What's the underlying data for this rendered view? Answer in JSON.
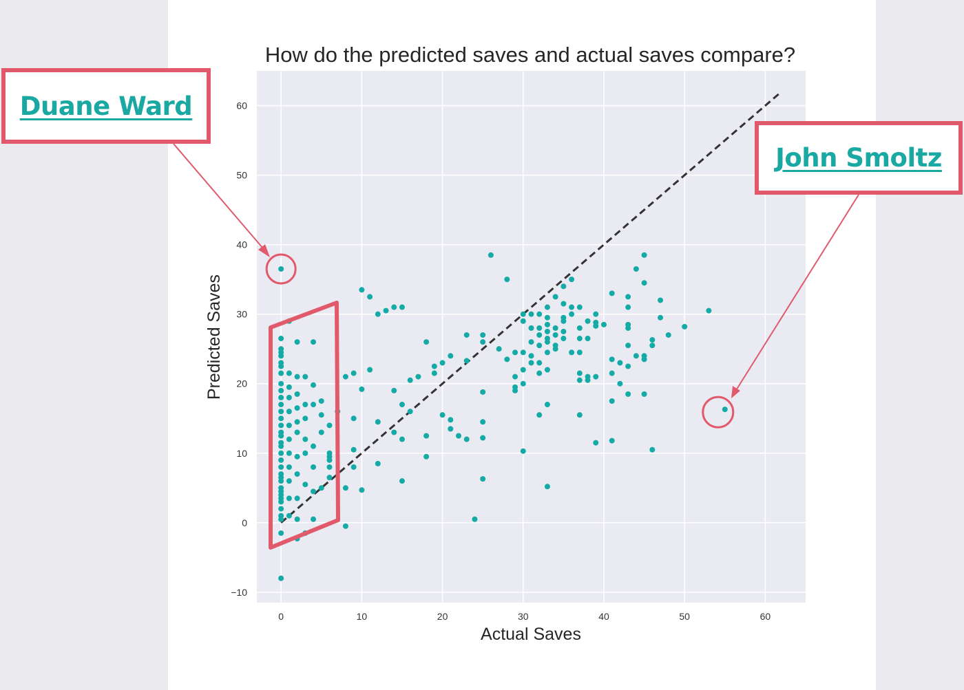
{
  "callouts": {
    "left": {
      "label": "Duane Ward"
    },
    "right": {
      "label": "John Smoltz"
    }
  },
  "colors": {
    "points": "#14aaa6",
    "annotation": "#e05a6b",
    "reference_line": "#333333",
    "plot_bg": "#eaeaf2"
  },
  "chart_data": {
    "type": "scatter",
    "title": "How do the predicted saves and actual saves compare?",
    "xlabel": "Actual Saves",
    "ylabel": "Predicted Saves",
    "xlim": [
      -3,
      65
    ],
    "ylim": [
      -11.5,
      65
    ],
    "xticks": [
      0,
      10,
      20,
      30,
      40,
      50,
      60
    ],
    "yticks": [
      -10,
      0,
      10,
      20,
      30,
      40,
      50,
      60
    ],
    "grid": true,
    "reference_line": {
      "style": "dashed",
      "points": [
        [
          0,
          0
        ],
        [
          62,
          62
        ]
      ]
    },
    "highlighted_points": [
      {
        "label": "Duane Ward",
        "x": 0,
        "y": 36.5
      },
      {
        "label": "John Smoltz",
        "x": 55,
        "y": 16.3
      }
    ],
    "points": [
      [
        0,
        36.5
      ],
      [
        0,
        26.5
      ],
      [
        0,
        25
      ],
      [
        0,
        24.5
      ],
      [
        0,
        24
      ],
      [
        0,
        23
      ],
      [
        0,
        22.5
      ],
      [
        0,
        21.5
      ],
      [
        0,
        20
      ],
      [
        0,
        19
      ],
      [
        0,
        18
      ],
      [
        0,
        17
      ],
      [
        0,
        16
      ],
      [
        0,
        15
      ],
      [
        0,
        14
      ],
      [
        0,
        13
      ],
      [
        0,
        12.5
      ],
      [
        0,
        11.5
      ],
      [
        0,
        11
      ],
      [
        0,
        10
      ],
      [
        0,
        9
      ],
      [
        0,
        8
      ],
      [
        0,
        7
      ],
      [
        0,
        6.5
      ],
      [
        0,
        6
      ],
      [
        0,
        5
      ],
      [
        0,
        4.5
      ],
      [
        0,
        4
      ],
      [
        0,
        3.5
      ],
      [
        0,
        3
      ],
      [
        0,
        2
      ],
      [
        0,
        1
      ],
      [
        0,
        0.5
      ],
      [
        0,
        -1.5
      ],
      [
        0,
        -8
      ],
      [
        1,
        29
      ],
      [
        1,
        21.5
      ],
      [
        1,
        19.5
      ],
      [
        1,
        18
      ],
      [
        1,
        16
      ],
      [
        1,
        14
      ],
      [
        1,
        12
      ],
      [
        1,
        10
      ],
      [
        1,
        8
      ],
      [
        1,
        6
      ],
      [
        1,
        3.5
      ],
      [
        1,
        1
      ],
      [
        2,
        26
      ],
      [
        2,
        21
      ],
      [
        2,
        18.5
      ],
      [
        2,
        16.5
      ],
      [
        2,
        14.5
      ],
      [
        2,
        13
      ],
      [
        2,
        9.5
      ],
      [
        2,
        7
      ],
      [
        2,
        3.5
      ],
      [
        2,
        0.5
      ],
      [
        2,
        -2.3
      ],
      [
        3,
        21
      ],
      [
        3,
        17
      ],
      [
        3,
        15
      ],
      [
        3,
        12
      ],
      [
        3,
        10
      ],
      [
        3,
        5.5
      ],
      [
        3,
        -1.5
      ],
      [
        4,
        26
      ],
      [
        4,
        19.8
      ],
      [
        4,
        17
      ],
      [
        4,
        11
      ],
      [
        4,
        8
      ],
      [
        4,
        4.5
      ],
      [
        4,
        0.5
      ],
      [
        5,
        17.5
      ],
      [
        5,
        15.5
      ],
      [
        5,
        13
      ],
      [
        5,
        5
      ],
      [
        6,
        14
      ],
      [
        6,
        10
      ],
      [
        6,
        9.5
      ],
      [
        6,
        9
      ],
      [
        6,
        8
      ],
      [
        6,
        6.5
      ],
      [
        7,
        16
      ],
      [
        8,
        21
      ],
      [
        8,
        5
      ],
      [
        8,
        -0.5
      ],
      [
        9,
        21.5
      ],
      [
        9,
        15
      ],
      [
        9,
        10.5
      ],
      [
        9,
        8
      ],
      [
        10,
        33.5
      ],
      [
        10,
        19.2
      ],
      [
        10,
        4.7
      ],
      [
        11,
        32.5
      ],
      [
        11,
        22
      ],
      [
        12,
        30
      ],
      [
        12,
        14.5
      ],
      [
        12,
        8.5
      ],
      [
        13,
        30.5
      ],
      [
        14,
        31
      ],
      [
        14,
        19
      ],
      [
        14,
        13
      ],
      [
        15,
        31
      ],
      [
        15,
        17
      ],
      [
        15,
        12
      ],
      [
        15,
        6
      ],
      [
        16,
        20.5
      ],
      [
        16,
        16
      ],
      [
        17,
        21
      ],
      [
        18,
        26
      ],
      [
        18,
        12.5
      ],
      [
        18,
        9.5
      ],
      [
        19,
        22.5
      ],
      [
        19,
        21.5
      ],
      [
        20,
        23
      ],
      [
        20,
        15.5
      ],
      [
        21,
        24
      ],
      [
        21,
        14.8
      ],
      [
        21,
        13.5
      ],
      [
        22,
        12.5
      ],
      [
        23,
        23.3
      ],
      [
        23,
        27
      ],
      [
        23,
        12
      ],
      [
        24,
        0.5
      ],
      [
        25,
        27
      ],
      [
        25,
        26
      ],
      [
        25,
        18.8
      ],
      [
        25,
        14.5
      ],
      [
        25,
        12.2
      ],
      [
        25,
        6.3
      ],
      [
        26,
        38.5
      ],
      [
        27,
        25
      ],
      [
        28,
        35
      ],
      [
        28,
        23.5
      ],
      [
        29,
        24.5
      ],
      [
        29,
        21
      ],
      [
        29,
        19.5
      ],
      [
        29,
        19
      ],
      [
        30,
        30
      ],
      [
        30,
        29
      ],
      [
        30,
        24.5
      ],
      [
        30,
        22
      ],
      [
        30,
        20
      ],
      [
        30,
        10.3
      ],
      [
        31,
        30
      ],
      [
        31,
        28
      ],
      [
        31,
        26
      ],
      [
        31,
        24
      ],
      [
        31,
        23
      ],
      [
        32,
        30
      ],
      [
        32,
        28
      ],
      [
        32,
        27
      ],
      [
        32,
        25.5
      ],
      [
        32,
        23
      ],
      [
        32,
        21.5
      ],
      [
        32,
        15.5
      ],
      [
        33,
        31
      ],
      [
        33,
        29.5
      ],
      [
        33,
        28.5
      ],
      [
        33,
        27.5
      ],
      [
        33,
        26.5
      ],
      [
        33,
        26
      ],
      [
        33,
        24.5
      ],
      [
        33,
        22
      ],
      [
        33,
        17
      ],
      [
        33,
        5.2
      ],
      [
        34,
        32.5
      ],
      [
        34,
        28
      ],
      [
        34,
        27
      ],
      [
        34,
        25.5
      ],
      [
        34,
        25
      ],
      [
        35,
        34
      ],
      [
        35,
        31.5
      ],
      [
        35,
        29.5
      ],
      [
        35,
        29
      ],
      [
        35,
        27.5
      ],
      [
        35,
        26.5
      ],
      [
        36,
        35
      ],
      [
        36,
        31
      ],
      [
        36,
        30
      ],
      [
        36,
        24.5
      ],
      [
        37,
        31
      ],
      [
        37,
        28
      ],
      [
        37,
        26.5
      ],
      [
        37,
        24.5
      ],
      [
        37,
        21.5
      ],
      [
        37,
        20.5
      ],
      [
        37,
        15.5
      ],
      [
        38,
        29
      ],
      [
        38,
        26.5
      ],
      [
        38,
        21
      ],
      [
        38,
        20.5
      ],
      [
        39,
        30
      ],
      [
        39,
        28.8
      ],
      [
        39,
        28.3
      ],
      [
        39,
        21
      ],
      [
        39,
        11.5
      ],
      [
        40,
        28.5
      ],
      [
        41,
        33
      ],
      [
        41,
        23.5
      ],
      [
        41,
        21.5
      ],
      [
        41,
        17.5
      ],
      [
        41,
        11.8
      ],
      [
        42,
        23
      ],
      [
        42,
        20
      ],
      [
        43,
        32.5
      ],
      [
        43,
        31
      ],
      [
        43,
        28.5
      ],
      [
        43,
        28
      ],
      [
        43,
        25.5
      ],
      [
        43,
        22.5
      ],
      [
        43,
        18.5
      ],
      [
        44,
        36.5
      ],
      [
        44,
        24
      ],
      [
        45,
        38.5
      ],
      [
        45,
        34.5
      ],
      [
        45,
        24
      ],
      [
        45,
        23.5
      ],
      [
        45,
        18.5
      ],
      [
        46,
        26.3
      ],
      [
        46,
        25.5
      ],
      [
        46,
        10.5
      ],
      [
        47,
        32
      ],
      [
        47,
        29.5
      ],
      [
        48,
        27
      ],
      [
        50,
        28.2
      ],
      [
        53,
        30.5
      ],
      [
        55,
        16.3
      ]
    ]
  }
}
